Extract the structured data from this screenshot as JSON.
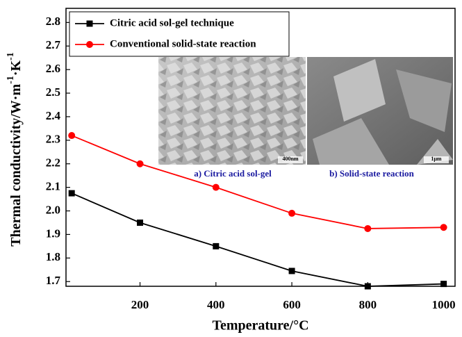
{
  "chart_data": {
    "type": "line",
    "xlabel": "Temperature/°C",
    "ylabel_parts": [
      "Thermal conductivity/W·m",
      "-1",
      "·K",
      "-1"
    ],
    "x": [
      20,
      200,
      400,
      600,
      800,
      1000
    ],
    "series": [
      {
        "name": "Citric acid sol-gel technique",
        "color": "#000000",
        "marker": "square",
        "values": [
          2.075,
          1.95,
          1.85,
          1.745,
          1.68,
          1.69
        ]
      },
      {
        "name": "Conventional solid-state reaction",
        "color": "#ff0000",
        "marker": "circle",
        "values": [
          2.32,
          2.2,
          2.1,
          1.99,
          1.925,
          1.93
        ]
      }
    ],
    "xlim": [
      5,
      1030
    ],
    "ylim": [
      1.68,
      2.86
    ],
    "xticks": [
      200,
      400,
      600,
      800,
      1000
    ],
    "yticks": [
      1.7,
      1.8,
      1.9,
      {
        "value": 2.0,
        "label": "2.0"
      },
      2.1,
      2.2,
      2.3,
      2.4,
      2.5,
      2.6,
      2.7,
      2.8
    ],
    "legend": "upper left",
    "insets": [
      {
        "scale": "400nm",
        "caption": "a)  Citric  acid  sol-gel"
      },
      {
        "scale": "1μm",
        "caption": "b)  Solid-state  reaction"
      }
    ]
  }
}
